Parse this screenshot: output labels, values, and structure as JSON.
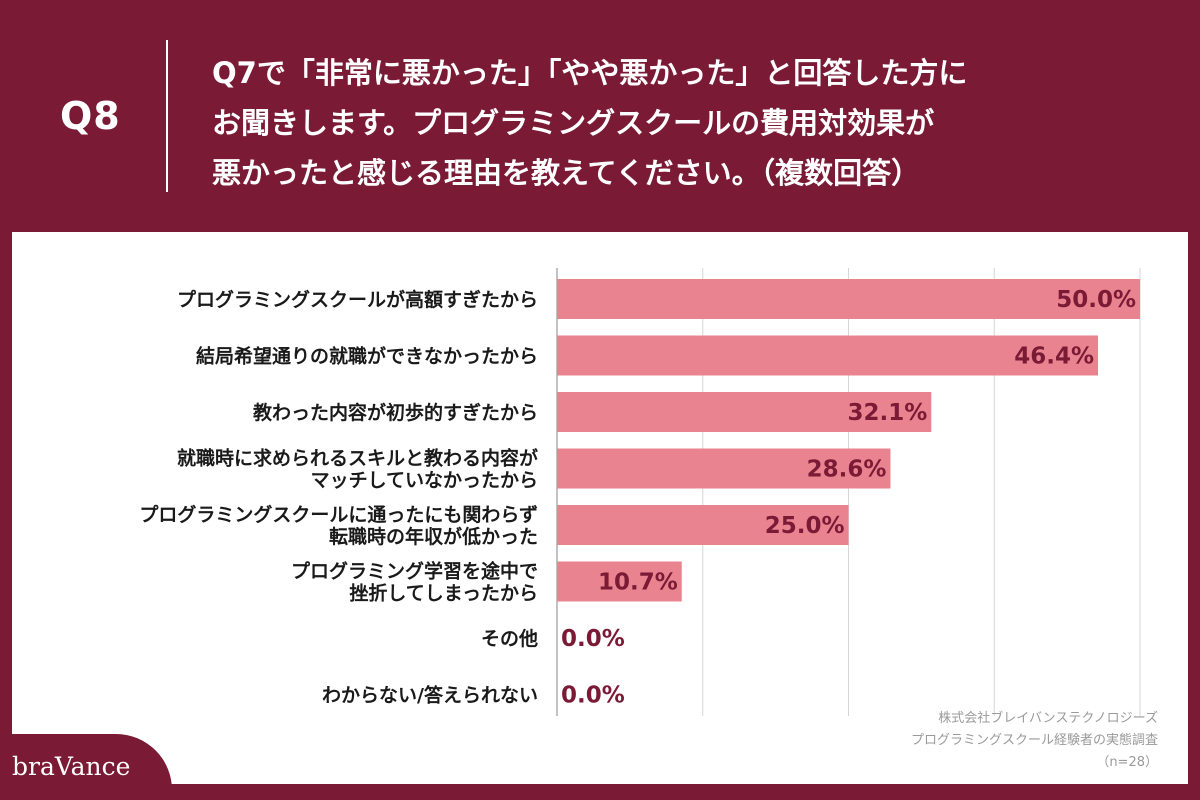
{
  "header": {
    "qnum": "Q8",
    "question_lines": [
      "Q7で「非常に悪かった」「やや悪かった」と回答した方に",
      "お聞きします。プログラミングスクールの費用対効果が",
      "悪かったと感じる理由を教えてください。（複数回答）"
    ]
  },
  "colors": {
    "accent": "#7a1a35",
    "bar": "#ea8390",
    "value_text": "#7a1a35",
    "background": "#ffffff"
  },
  "chart_data": {
    "type": "bar",
    "orientation": "horizontal",
    "categories": [
      [
        "プログラミングスクールが高額すぎたから"
      ],
      [
        "結局希望通りの就職ができなかったから"
      ],
      [
        "教わった内容が初歩的すぎたから"
      ],
      [
        "就職時に求められるスキルと教わる内容が",
        "マッチしていなかったから"
      ],
      [
        "プログラミングスクールに通ったにも関わらず",
        "転職時の年収が低かった"
      ],
      [
        "プログラミング学習を途中で",
        "挫折してしまったから"
      ],
      [
        "その他"
      ],
      [
        "わからない/答えられない"
      ]
    ],
    "values": [
      50.0,
      46.4,
      32.1,
      28.6,
      25.0,
      10.7,
      0.0,
      0.0
    ],
    "value_labels": [
      "50.0%",
      "46.4%",
      "32.1%",
      "28.6%",
      "25.0%",
      "10.7%",
      "0.0%",
      "0.0%"
    ],
    "xlim": [
      0,
      50
    ],
    "grid": true,
    "gridlines": [
      0,
      12.5,
      25,
      37.5,
      50
    ]
  },
  "source": {
    "lines": [
      "株式会社ブレイバンステクノロジーズ",
      "プログラミングスクール経験者の実態調査",
      "（n=28）"
    ]
  },
  "brand": {
    "name": "braVance"
  }
}
